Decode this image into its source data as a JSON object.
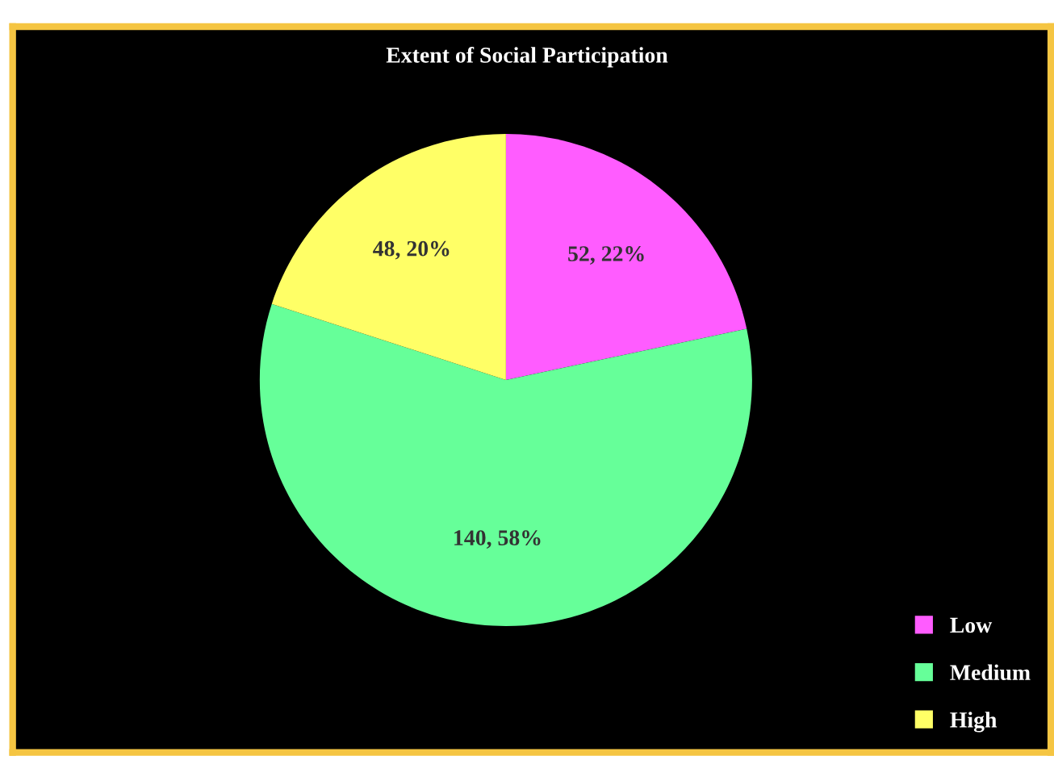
{
  "chart_data": {
    "type": "pie",
    "title": "Extent of Social Participation",
    "categories": [
      "Low",
      "Medium",
      "High"
    ],
    "values": [
      52,
      140,
      48
    ],
    "colors": [
      "#ff5cff",
      "#66ff99",
      "#ffff66"
    ],
    "value_labels": [
      "52, 22%",
      "140, 58%",
      "48, 20%"
    ],
    "legend": "bottom right"
  }
}
